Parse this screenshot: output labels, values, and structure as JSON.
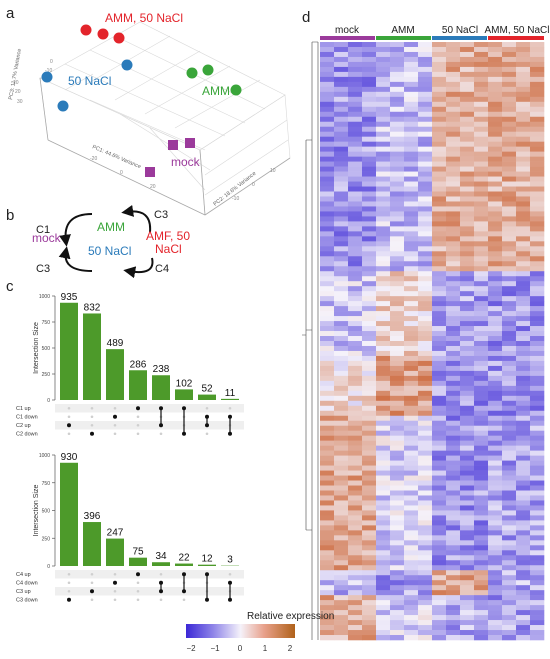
{
  "panel_labels": {
    "a": "a",
    "b": "b",
    "c": "c",
    "d": "d"
  },
  "pca": {
    "axis_labels": [
      "PC1: 44.6% Variance",
      "PC2: 18.6% Variance",
      "PC3: 11.7% Variance"
    ],
    "groups": [
      {
        "label": "AMM, 50 NaCl",
        "color": "#e3242b"
      },
      {
        "label": "50 NaCl",
        "color": "#2b7bba"
      },
      {
        "label": "AMM",
        "color": "#3aa53a"
      },
      {
        "label": "mock",
        "color": "#9b3a9b"
      }
    ]
  },
  "cycle_diagram": {
    "left_comparisons": [
      "C1",
      "C2"
    ],
    "right_comparisons": [
      "C3",
      "C4"
    ],
    "nodes": {
      "mock": "mock",
      "amm": "AMM",
      "nacl": "50 NaCl",
      "amf": "AMF, 50 NaCl"
    },
    "colors": {
      "mock": "#9b3a9b",
      "amm": "#3aa53a",
      "nacl": "#2b7bba",
      "amf": "#e3242b"
    }
  },
  "heatmap": {
    "groups": [
      {
        "label": "mock",
        "color": "#9b3a9b"
      },
      {
        "label": "AMM",
        "color": "#3aa53a"
      },
      {
        "label": "50 NaCl",
        "color": "#2b7bba"
      },
      {
        "label": "AMM, 50 NaCl",
        "color": "#e3242b"
      }
    ],
    "legend_title": "Relative expression",
    "legend_ticks": [
      "−2",
      "−1",
      "0",
      "1",
      "2"
    ]
  },
  "chart_data": [
    {
      "type": "bar",
      "ylabel": "Intersection Size",
      "ylim": [
        0,
        1000
      ],
      "yticks": [
        "0",
        "250",
        "500",
        "750",
        "1000"
      ],
      "values": [
        935,
        832,
        489,
        286,
        238,
        102,
        52,
        11
      ],
      "sets": [
        "C1 up",
        "C1 down",
        "C2 up",
        "C2 down"
      ],
      "membership": [
        [
          2
        ],
        [
          3
        ],
        [
          1
        ],
        [
          0
        ],
        [
          0,
          2
        ],
        [
          0,
          3
        ],
        [
          1,
          2
        ],
        [
          1,
          3
        ]
      ],
      "bar_color": "#4d9a2a"
    },
    {
      "type": "bar",
      "ylabel": "Intersection Size",
      "ylim": [
        0,
        1000
      ],
      "yticks": [
        "0",
        "250",
        "500",
        "750",
        "1000"
      ],
      "values": [
        930,
        396,
        247,
        75,
        34,
        22,
        12,
        3
      ],
      "sets": [
        "C4 up",
        "C4 down",
        "C3 up",
        "C3 down"
      ],
      "membership": [
        [
          3
        ],
        [
          2
        ],
        [
          1
        ],
        [
          0
        ],
        [
          1,
          2
        ],
        [
          0,
          2
        ],
        [
          0,
          3
        ],
        [
          1,
          3
        ]
      ],
      "bar_color": "#4d9a2a"
    }
  ]
}
